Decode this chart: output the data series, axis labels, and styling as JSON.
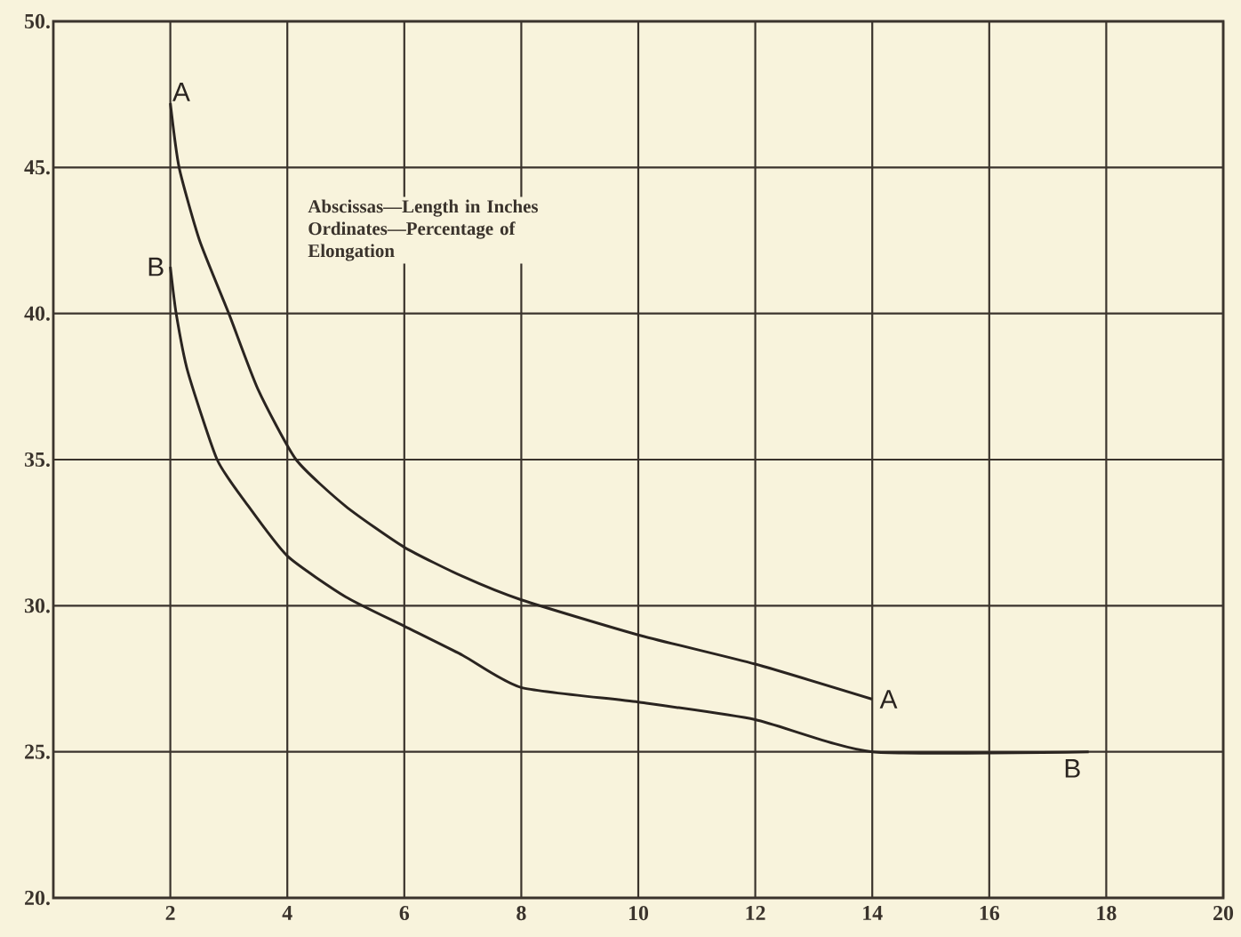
{
  "chart_data": {
    "type": "line",
    "annotations": [
      "Abscissas—Length in Inches",
      "Ordinates—Percentage of Elongation"
    ],
    "series": [
      {
        "name": "A",
        "color": "#2a2420",
        "x": [
          2,
          2.15,
          2.5,
          3,
          3.5,
          4.15,
          5,
          6,
          7,
          8,
          10,
          12,
          14
        ],
        "values": [
          47.2,
          45,
          42.5,
          40,
          37.4,
          35,
          33.4,
          32,
          31,
          30.2,
          29,
          28,
          26.8
        ]
      },
      {
        "name": "B",
        "color": "#2a2420",
        "x": [
          2,
          2.1,
          2.3,
          2.8,
          3.3,
          4,
          5,
          6,
          7,
          8,
          10,
          12,
          14,
          17.7
        ],
        "values": [
          41.6,
          40,
          38,
          35,
          33.5,
          31.7,
          30.3,
          29.3,
          28.3,
          27.2,
          26.7,
          26.1,
          25,
          25
        ]
      }
    ],
    "xlim": [
      0,
      20
    ],
    "ylim": [
      20,
      50
    ],
    "xticks": [
      2,
      4,
      6,
      8,
      10,
      12,
      14,
      16,
      18,
      20
    ],
    "yticks": [
      {
        "value": 20,
        "label": "20."
      },
      {
        "value": 25,
        "label": "25."
      },
      {
        "value": 30,
        "label": "30."
      },
      {
        "value": 35,
        "label": "35."
      },
      {
        "value": 40,
        "label": "40."
      },
      {
        "value": 45,
        "label": "45."
      },
      {
        "value": 50,
        "label": "50."
      }
    ],
    "grid": true,
    "line_style": "solid"
  }
}
